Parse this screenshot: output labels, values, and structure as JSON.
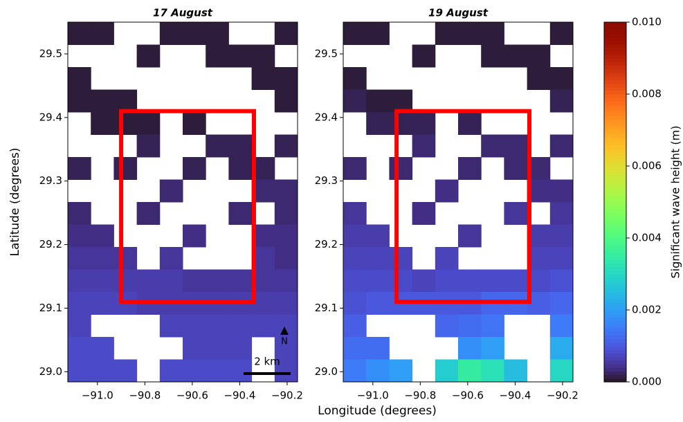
{
  "chart_data": [
    {
      "type": "heatmap",
      "title": "17 August",
      "xlabel": "Longitude (degrees)",
      "ylabel": "Latitude (degrees)",
      "xlim": [
        -91.125,
        -90.156
      ],
      "ylim": [
        28.984,
        29.55
      ],
      "xticks": [
        {
          "value": -91.0,
          "label": "−91.0"
        },
        {
          "value": -90.8,
          "label": "−90.8"
        },
        {
          "value": -90.6,
          "label": "−90.6"
        },
        {
          "value": -90.4,
          "label": "−90.4"
        },
        {
          "value": -90.2,
          "label": "−90.2"
        }
      ],
      "yticks": [
        {
          "value": 29.0,
          "label": "29.0"
        },
        29.1,
        29.2,
        29.3,
        29.4,
        29.5
      ],
      "colormap": "turbo",
      "clim": [
        0,
        0.01
      ],
      "highlight_box": {
        "x": [
          -90.9,
          -90.34
        ],
        "y": [
          29.11,
          29.41
        ],
        "color": "#ff0000"
      },
      "scale_bar_label": "2 km",
      "north_label": "N",
      "z": [
        [
          0.0001,
          0.0001,
          null,
          null,
          0.0001,
          0.0001,
          0.0001,
          null,
          null,
          0.0001
        ],
        [
          null,
          null,
          null,
          0.0001,
          null,
          null,
          0.0001,
          0.0001,
          0.0001,
          null
        ],
        [
          0.0001,
          null,
          null,
          null,
          null,
          null,
          null,
          null,
          0.0001,
          0.0001
        ],
        [
          0.0001,
          0.0001,
          0.0001,
          null,
          null,
          null,
          null,
          null,
          null,
          0.0001
        ],
        [
          null,
          0.0001,
          0.0001,
          0.0001,
          null,
          0.0001,
          null,
          null,
          null,
          null
        ],
        [
          null,
          null,
          null,
          0.0002,
          null,
          null,
          0.0002,
          0.0002,
          null,
          0.0002
        ],
        [
          0.0002,
          null,
          0.0002,
          null,
          null,
          0.0002,
          null,
          0.0002,
          0.0002,
          null
        ],
        [
          null,
          null,
          null,
          null,
          0.0003,
          null,
          null,
          null,
          0.0003,
          0.0003
        ],
        [
          0.0003,
          null,
          null,
          0.0003,
          null,
          null,
          null,
          0.0003,
          null,
          0.0003
        ],
        [
          0.0004,
          0.0004,
          null,
          null,
          null,
          0.0004,
          null,
          null,
          0.0004,
          0.0004
        ],
        [
          0.0005,
          0.0005,
          0.0005,
          null,
          0.0005,
          null,
          null,
          null,
          0.0005,
          0.0004
        ],
        [
          0.0006,
          0.0006,
          0.0006,
          0.0006,
          0.0006,
          0.0005,
          0.0005,
          0.0005,
          0.0005,
          0.0005
        ],
        [
          0.0007,
          0.0007,
          0.0007,
          0.0006,
          0.0006,
          0.0006,
          0.0006,
          0.0006,
          0.0006,
          0.0006
        ],
        [
          0.0007,
          null,
          null,
          null,
          0.0007,
          0.0007,
          0.0007,
          0.0007,
          0.0007,
          0.0007
        ],
        [
          0.0008,
          0.0008,
          null,
          null,
          null,
          0.0007,
          0.0007,
          0.0007,
          null,
          0.0007
        ],
        [
          0.0008,
          0.0008,
          0.0008,
          null,
          0.0008,
          0.0008,
          0.0008,
          0.0008,
          null,
          0.0007
        ]
      ]
    },
    {
      "type": "heatmap",
      "title": "19 August",
      "xlim": [
        -91.125,
        -90.156
      ],
      "ylim": [
        28.984,
        29.55
      ],
      "xticks": [
        {
          "value": -91.0,
          "label": "−91.0"
        },
        {
          "value": -90.8,
          "label": "−90.8"
        },
        {
          "value": -90.6,
          "label": "−90.6"
        },
        {
          "value": -90.4,
          "label": "−90.4"
        },
        {
          "value": -90.2,
          "label": "−90.2"
        }
      ],
      "yticks": [
        {
          "value": 29.0,
          "label": "29.0"
        },
        29.1,
        29.2,
        29.3,
        29.4,
        29.5
      ],
      "colormap": "turbo",
      "clim": [
        0,
        0.01
      ],
      "highlight_box": {
        "x": [
          -90.9,
          -90.34
        ],
        "y": [
          29.11,
          29.41
        ],
        "color": "#ff0000"
      },
      "colorbar": {
        "label": "Significant wave height (m)",
        "lim": [
          0,
          0.01
        ],
        "ticks": [
          {
            "value": 0,
            "label": "0.000"
          },
          {
            "value": 0.002,
            "label": "0.002"
          },
          {
            "value": 0.004,
            "label": "0.004"
          },
          {
            "value": 0.006,
            "label": "0.006"
          },
          {
            "value": 0.008,
            "label": "0.008"
          },
          {
            "value": 0.01,
            "label": "0.010"
          }
        ]
      },
      "z": [
        [
          0.0001,
          0.0001,
          null,
          null,
          0.0001,
          0.0001,
          0.0001,
          null,
          null,
          0.0001
        ],
        [
          null,
          null,
          null,
          0.0001,
          null,
          null,
          0.0001,
          0.0001,
          0.0001,
          null
        ],
        [
          0.0001,
          null,
          null,
          null,
          null,
          null,
          null,
          null,
          0.0001,
          0.0001
        ],
        [
          0.0002,
          0.0001,
          0.0001,
          null,
          null,
          null,
          null,
          null,
          null,
          0.0002
        ],
        [
          null,
          0.0002,
          0.0002,
          0.0002,
          null,
          0.0002,
          null,
          null,
          null,
          null
        ],
        [
          null,
          null,
          null,
          0.0003,
          null,
          null,
          0.0003,
          0.0003,
          null,
          0.0003
        ],
        [
          0.0003,
          null,
          0.0003,
          null,
          null,
          0.0003,
          null,
          0.0003,
          0.0003,
          null
        ],
        [
          null,
          null,
          null,
          null,
          0.0004,
          null,
          null,
          null,
          0.0004,
          0.0004
        ],
        [
          0.0005,
          null,
          null,
          0.0004,
          null,
          null,
          null,
          0.0005,
          null,
          0.0005
        ],
        [
          0.0006,
          0.0006,
          null,
          null,
          null,
          0.0005,
          null,
          null,
          0.0006,
          0.0006
        ],
        [
          0.0007,
          0.0007,
          0.0007,
          null,
          0.0007,
          null,
          null,
          null,
          0.0007,
          0.0007
        ],
        [
          0.0008,
          0.0008,
          0.0008,
          0.0007,
          0.0008,
          0.0008,
          0.0008,
          0.0008,
          0.0008,
          0.0009
        ],
        [
          0.0009,
          0.001,
          0.001,
          0.001,
          0.001,
          0.001,
          0.0012,
          0.0012,
          0.0011,
          0.0012
        ],
        [
          0.0011,
          null,
          null,
          null,
          0.0012,
          0.0013,
          0.0014,
          null,
          null,
          0.0015
        ],
        [
          0.0013,
          0.0013,
          null,
          null,
          null,
          0.0018,
          0.002,
          null,
          null,
          0.0022
        ],
        [
          0.0015,
          0.0018,
          0.002,
          null,
          0.0028,
          0.0035,
          0.0032,
          0.0025,
          null,
          0.003
        ]
      ]
    }
  ]
}
